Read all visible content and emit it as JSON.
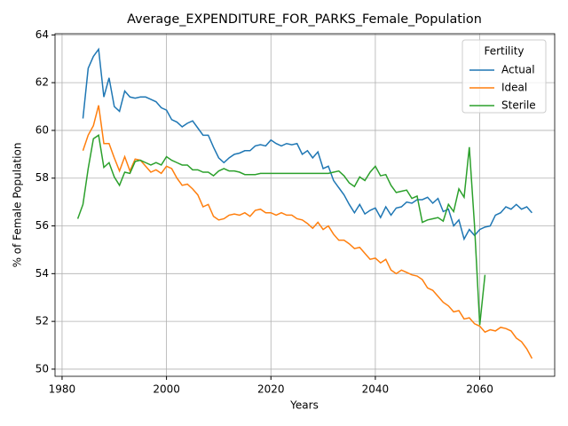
{
  "chart_data": {
    "type": "line",
    "title": "Average_EXPENDITURE_FOR_PARKS_Female_Population",
    "x_label": "Years",
    "y_label": "% of Female Population",
    "x": [
      1983,
      1984,
      1985,
      1986,
      1987,
      1988,
      1989,
      1990,
      1991,
      1992,
      1993,
      1994,
      1995,
      1996,
      1997,
      1998,
      1999,
      2000,
      2001,
      2002,
      2003,
      2004,
      2005,
      2006,
      2007,
      2008,
      2009,
      2010,
      2011,
      2012,
      2013,
      2014,
      2015,
      2016,
      2017,
      2018,
      2019,
      2020,
      2021,
      2022,
      2023,
      2024,
      2025,
      2026,
      2027,
      2028,
      2029,
      2030,
      2031,
      2032,
      2033,
      2034,
      2035,
      2036,
      2037,
      2038,
      2039,
      2040,
      2041,
      2042,
      2043,
      2044,
      2045,
      2046,
      2047,
      2048,
      2049,
      2050,
      2051,
      2052,
      2053,
      2054,
      2055,
      2056,
      2057,
      2058,
      2059,
      2060,
      2061,
      2062,
      2063,
      2064,
      2065,
      2066,
      2067,
      2068,
      2069,
      2070
    ],
    "series": [
      {
        "name": "Actual",
        "color": "#1f77b4",
        "values": [
          null,
          60.5,
          62.6,
          63.1,
          63.4,
          61.4,
          62.2,
          61.0,
          60.8,
          61.65,
          61.4,
          61.35,
          61.4,
          61.4,
          61.3,
          61.2,
          60.95,
          60.85,
          60.45,
          60.35,
          60.15,
          60.3,
          60.4,
          60.1,
          59.8,
          59.8,
          59.3,
          58.85,
          58.65,
          58.85,
          59.0,
          59.05,
          59.15,
          59.15,
          59.35,
          59.4,
          59.35,
          59.6,
          59.45,
          59.35,
          59.45,
          59.4,
          59.45,
          59.0,
          59.15,
          58.85,
          59.1,
          58.4,
          58.5,
          57.9,
          57.6,
          57.3,
          56.9,
          56.55,
          56.9,
          56.5,
          56.65,
          56.75,
          56.35,
          56.8,
          56.45,
          56.75,
          56.8,
          57.0,
          56.95,
          57.1,
          57.1,
          57.2,
          56.95,
          57.15,
          56.6,
          56.7,
          56.0,
          56.25,
          55.45,
          55.85,
          55.6,
          55.85,
          55.95,
          56.0,
          56.45,
          56.55,
          56.8,
          56.7,
          56.9,
          56.7,
          56.8,
          56.55
        ]
      },
      {
        "name": "Ideal",
        "color": "#ff7f0e",
        "values": [
          null,
          59.15,
          59.8,
          60.2,
          61.05,
          59.45,
          59.45,
          58.85,
          58.3,
          58.9,
          58.3,
          58.8,
          58.75,
          58.5,
          58.25,
          58.35,
          58.2,
          58.5,
          58.4,
          58.0,
          57.7,
          57.75,
          57.55,
          57.3,
          56.8,
          56.9,
          56.4,
          56.25,
          56.3,
          56.45,
          56.5,
          56.45,
          56.55,
          56.4,
          56.65,
          56.7,
          56.55,
          56.55,
          56.45,
          56.55,
          56.45,
          56.45,
          56.3,
          56.25,
          56.1,
          55.9,
          56.15,
          55.85,
          56.0,
          55.65,
          55.4,
          55.4,
          55.25,
          55.05,
          55.1,
          54.85,
          54.6,
          54.65,
          54.45,
          54.6,
          54.15,
          54.0,
          54.15,
          54.05,
          53.95,
          53.9,
          53.75,
          53.4,
          53.3,
          53.05,
          52.8,
          52.65,
          52.4,
          52.45,
          52.1,
          52.15,
          51.9,
          51.8,
          51.55,
          51.65,
          51.6,
          51.75,
          51.7,
          51.6,
          51.3,
          51.15,
          50.85,
          50.45
        ]
      },
      {
        "name": "Sterile",
        "color": "#2ca02c",
        "values": [
          56.3,
          56.9,
          58.4,
          59.65,
          59.8,
          58.45,
          58.65,
          58.05,
          57.7,
          58.25,
          58.2,
          58.7,
          58.75,
          58.65,
          58.55,
          58.65,
          58.55,
          58.9,
          58.75,
          58.65,
          58.55,
          58.55,
          58.35,
          58.35,
          58.25,
          58.25,
          58.1,
          58.3,
          58.4,
          58.3,
          58.3,
          58.25,
          58.15,
          58.15,
          58.15,
          58.2,
          58.2,
          58.2,
          58.2,
          58.2,
          58.2,
          58.2,
          58.2,
          58.2,
          58.2,
          58.2,
          58.2,
          58.2,
          58.2,
          58.25,
          58.3,
          58.1,
          57.8,
          57.65,
          58.05,
          57.9,
          58.25,
          58.5,
          58.1,
          58.15,
          57.7,
          57.4,
          57.45,
          57.5,
          57.15,
          57.25,
          56.15,
          56.25,
          56.3,
          56.35,
          56.2,
          56.9,
          56.6,
          57.55,
          57.2,
          59.3,
          56.0,
          51.85,
          53.95,
          null,
          null,
          null,
          null,
          null,
          null,
          null,
          null,
          null
        ]
      }
    ],
    "xlim": [
      1978.65,
      2074.35
    ],
    "ylim": [
      49.7,
      64.05
    ],
    "xticks": [
      1980,
      2000,
      2020,
      2040,
      2060
    ],
    "yticks": [
      50,
      52,
      54,
      56,
      58,
      60,
      62,
      64
    ],
    "grid": true,
    "legend": {
      "title": "Fertility",
      "loc": "upper right"
    }
  }
}
